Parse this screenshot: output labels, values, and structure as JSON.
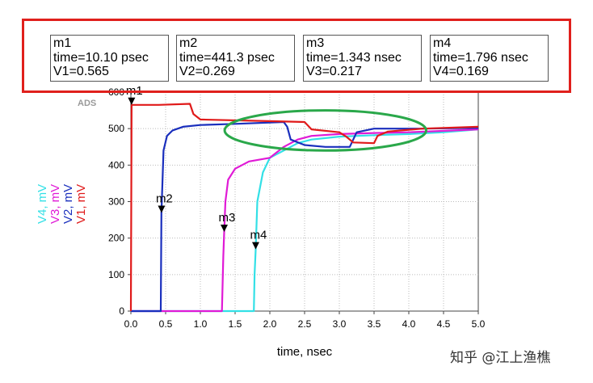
{
  "markers": [
    {
      "name": "m1",
      "time_line": "time=10.10 psec",
      "value_line": "V1=0.565"
    },
    {
      "name": "m2",
      "time_line": "time=441.3 psec",
      "value_line": "V2=0.269"
    },
    {
      "name": "m3",
      "time_line": "time=1.343 nsec",
      "value_line": "V3=0.217"
    },
    {
      "name": "m4",
      "time_line": "time=1.796 nsec",
      "value_line": "V4=0.169"
    }
  ],
  "colors": {
    "V1": "#e01a1a",
    "V2": "#1a2fbd",
    "V3": "#e01ad6",
    "V4": "#33e0e6",
    "highlight_box": "#e0201c",
    "ellipse": "#2aa84a"
  },
  "watermark": "知乎 @江上渔樵",
  "chart_data": {
    "type": "line",
    "ads_logo": "ADS",
    "xlabel": "time, nsec",
    "xlim": [
      0,
      5
    ],
    "ylim": [
      0,
      600
    ],
    "x_ticks": [
      0.0,
      0.5,
      1.0,
      1.5,
      2.0,
      2.5,
      3.0,
      3.5,
      4.0,
      4.5,
      5.0
    ],
    "x_tick_labels": [
      "0.0",
      "0.5",
      "1.0",
      "1.5",
      "2.0",
      "2.5",
      "3.0",
      "3.5",
      "4.0",
      "4.5",
      "5.0"
    ],
    "y_ticks": [
      0,
      100,
      200,
      300,
      400,
      500,
      600
    ],
    "y_tick_labels": [
      "0",
      "100",
      "200",
      "300",
      "400",
      "500",
      "600"
    ],
    "legend": [
      {
        "name": "V4",
        "text": "V4, mV",
        "color": "#33e0e6"
      },
      {
        "name": "V3",
        "text": "V3, mV",
        "color": "#e01ad6"
      },
      {
        "name": "V2",
        "text": "V2, mV",
        "color": "#1a2fbd"
      },
      {
        "name": "V1",
        "text": "V1, mV",
        "color": "#e01a1a"
      }
    ],
    "series": [
      {
        "name": "V1",
        "color": "#e01a1a",
        "x": [
          0.0,
          0.01,
          0.03,
          0.4,
          0.85,
          0.9,
          1.0,
          2.1,
          2.5,
          2.6,
          3.0,
          3.1,
          3.2,
          3.5,
          3.55,
          3.7,
          4.2,
          5.0
        ],
        "y": [
          0,
          565,
          565,
          565,
          568,
          540,
          525,
          520,
          518,
          498,
          490,
          478,
          462,
          460,
          480,
          492,
          500,
          505
        ]
      },
      {
        "name": "V2",
        "color": "#1a2fbd",
        "x": [
          0.0,
          0.43,
          0.44,
          0.47,
          0.52,
          0.6,
          0.75,
          1.0,
          1.5,
          2.2,
          2.25,
          2.3,
          2.5,
          2.8,
          3.15,
          3.25,
          3.5,
          3.8,
          4.2,
          5.0
        ],
        "y": [
          0,
          0,
          269,
          440,
          480,
          495,
          505,
          510,
          513,
          518,
          505,
          470,
          455,
          450,
          450,
          490,
          500,
          500,
          500,
          502
        ]
      },
      {
        "name": "V3",
        "color": "#e01ad6",
        "x": [
          0.0,
          1.31,
          1.33,
          1.343,
          1.36,
          1.4,
          1.5,
          1.7,
          2.0,
          2.2,
          2.4,
          2.6,
          3.0,
          3.5,
          4.0,
          5.0
        ],
        "y": [
          0,
          0,
          150,
          217,
          300,
          360,
          390,
          410,
          420,
          450,
          470,
          480,
          485,
          488,
          490,
          498
        ]
      },
      {
        "name": "V4",
        "color": "#33e0e6",
        "x": [
          0.0,
          1.77,
          1.78,
          1.796,
          1.82,
          1.9,
          2.0,
          2.2,
          2.4,
          2.6,
          3.0,
          3.5,
          4.0,
          4.5,
          5.0
        ],
        "y": [
          0,
          0,
          100,
          169,
          300,
          380,
          420,
          440,
          460,
          470,
          478,
          482,
          485,
          490,
          498
        ]
      }
    ],
    "marker_points": [
      {
        "name": "m1",
        "series": "V1",
        "x": 0.0101,
        "y": 565,
        "label": "m1"
      },
      {
        "name": "m2",
        "series": "V2",
        "x": 0.4413,
        "y": 269,
        "label": "m2"
      },
      {
        "name": "m3",
        "series": "V3",
        "x": 1.343,
        "y": 217,
        "label": "m3"
      },
      {
        "name": "m4",
        "series": "V4",
        "x": 1.796,
        "y": 169,
        "label": "m4"
      }
    ],
    "annotation": {
      "shape": "ellipse",
      "color": "#2aa84a",
      "center": [
        2.8,
        495
      ],
      "radius_x": 1.45,
      "radius_y": 55
    }
  }
}
